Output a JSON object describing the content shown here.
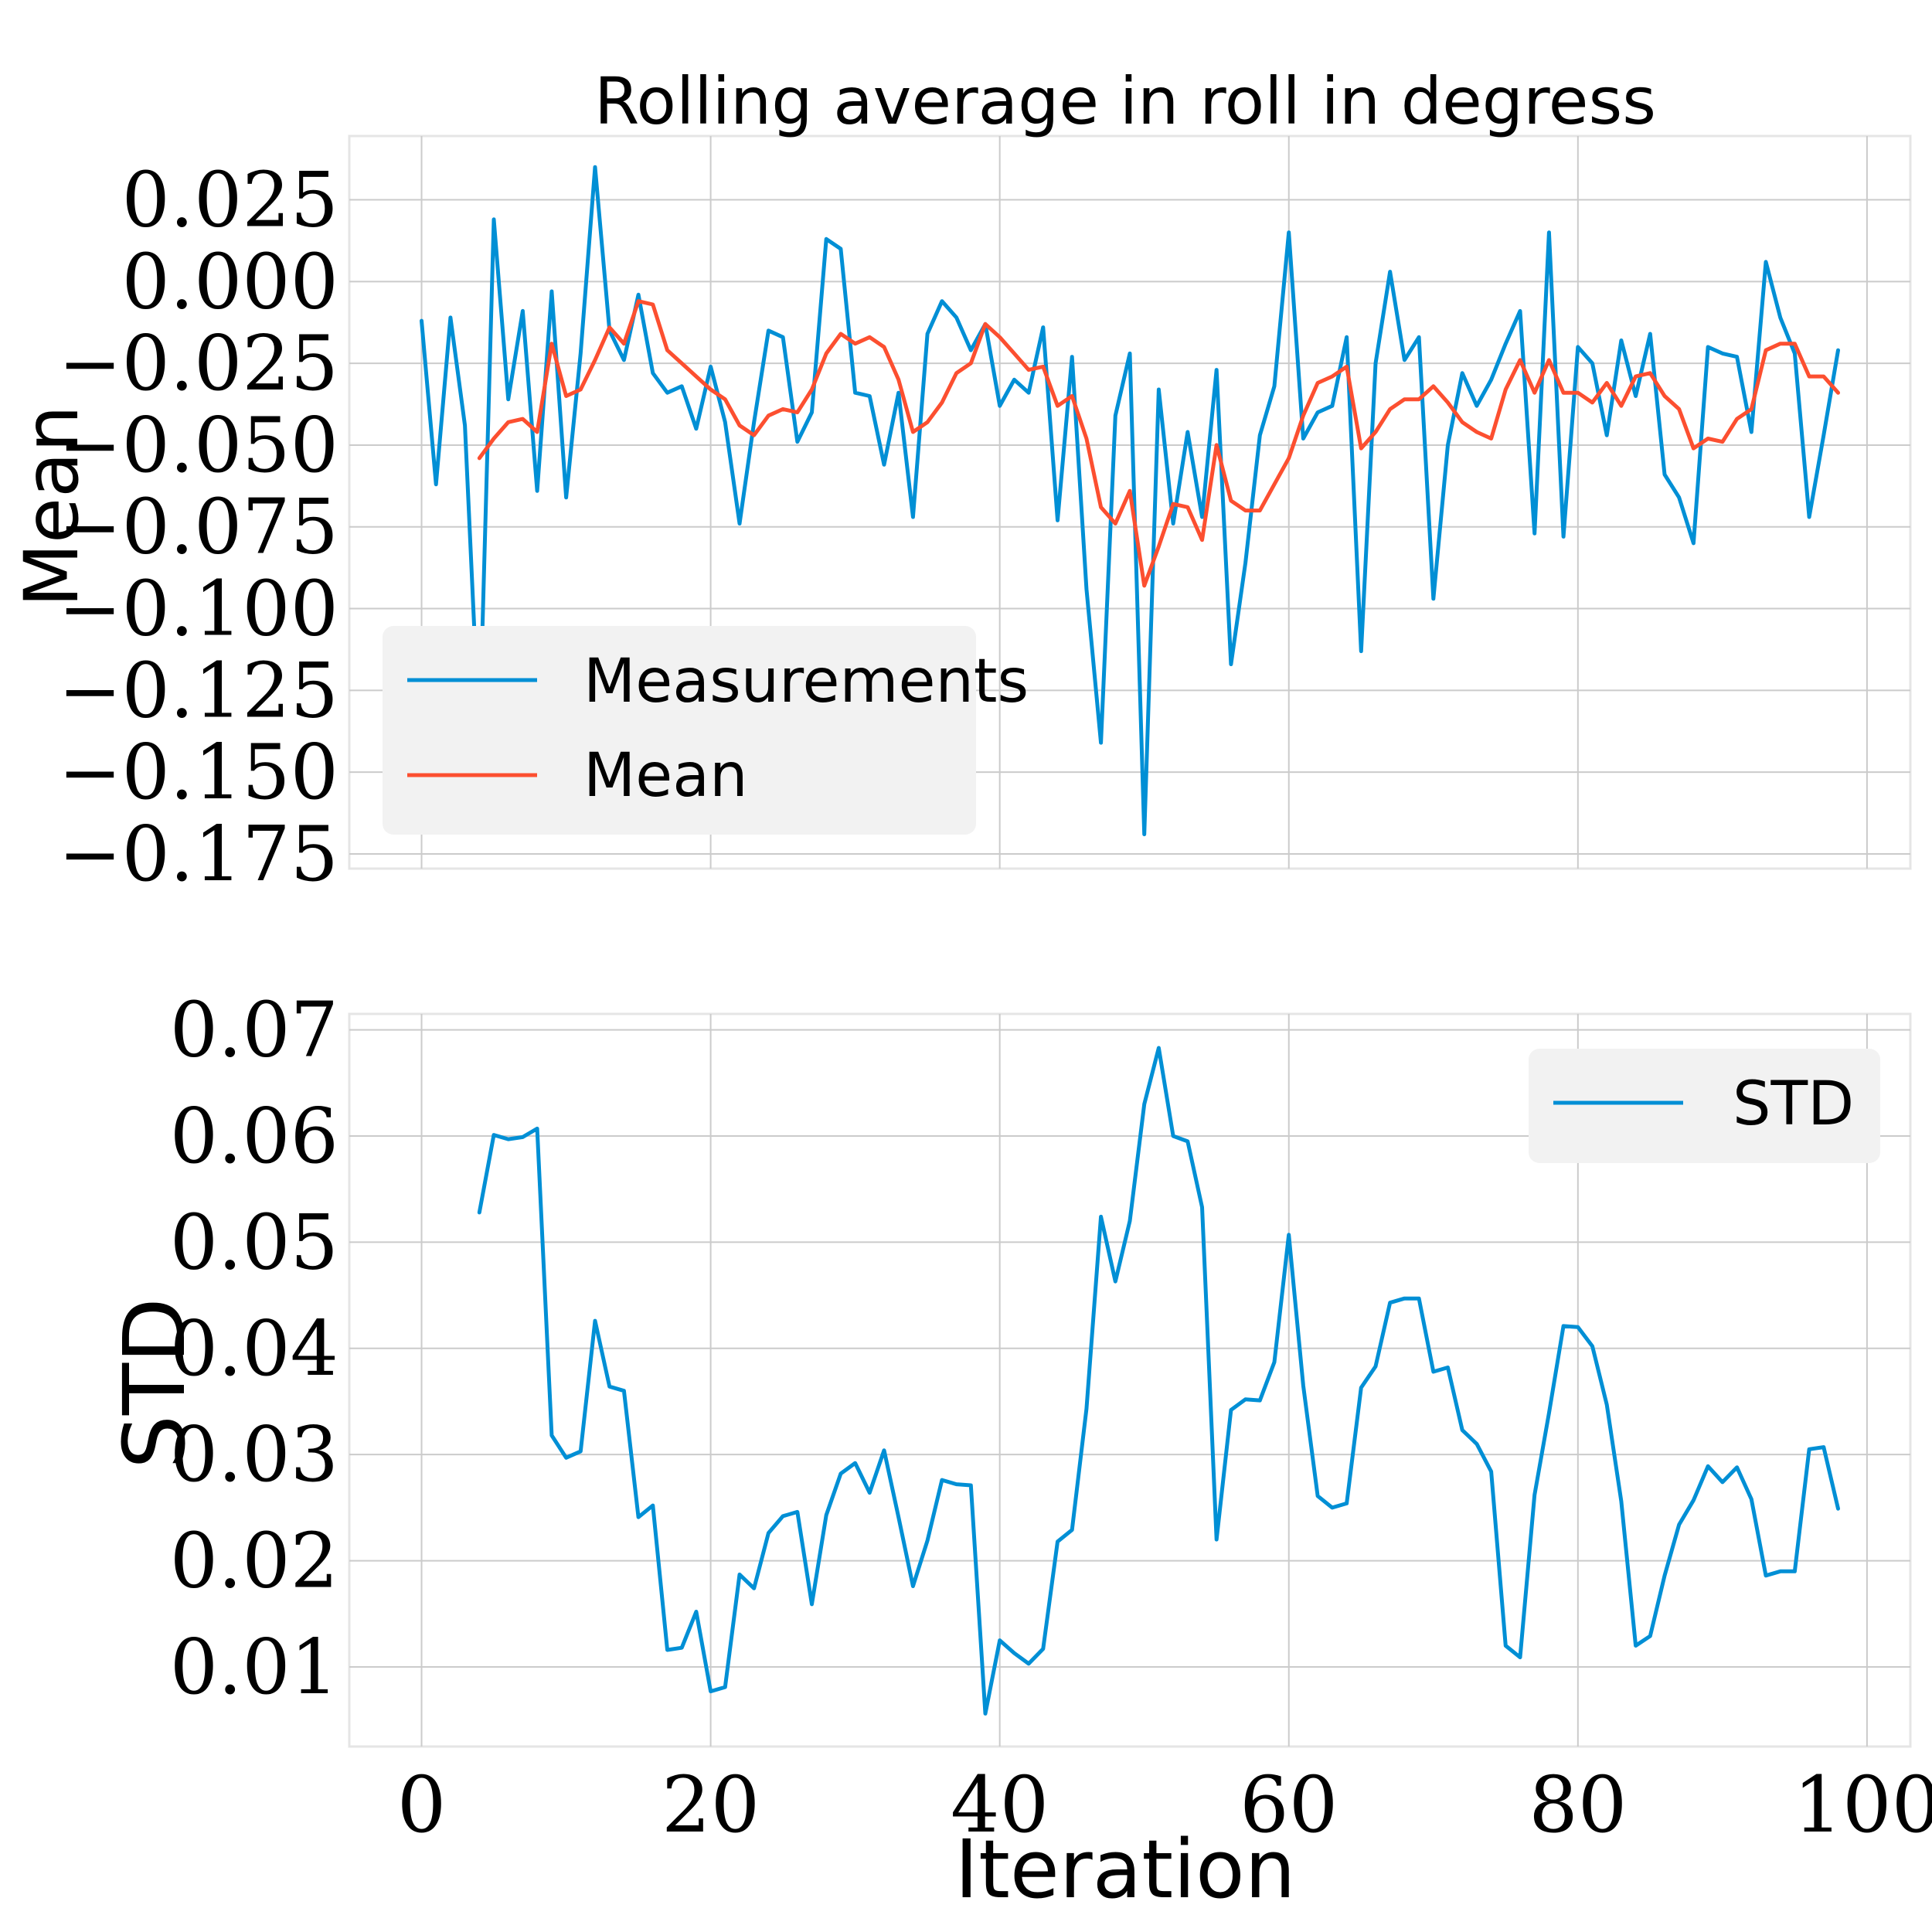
{
  "chart_data": [
    {
      "type": "line",
      "title": "Rolling average in roll in degress",
      "xlabel": "",
      "ylabel": "Mean",
      "xlim": [
        -5,
        103
      ],
      "ylim": [
        -0.1795,
        0.0445
      ],
      "x_ticks": [
        0,
        20,
        40,
        60,
        80,
        100
      ],
      "y_ticks": [
        0.025,
        0.0,
        -0.025,
        -0.05,
        -0.075,
        -0.1,
        -0.125,
        -0.15,
        -0.175
      ],
      "y_tick_labels": [
        "0.025",
        "0.000",
        "−0.025",
        "−0.050",
        "−0.075",
        "−0.100",
        "−0.125",
        "−0.150",
        "−0.175"
      ],
      "grid": true,
      "legend": "lower-left",
      "series": [
        {
          "name": "Measurements",
          "color": "#008fd5",
          "x_start": 0,
          "values": [
            -0.012,
            -0.062,
            -0.011,
            -0.044,
            -0.14,
            0.019,
            -0.036,
            -0.009,
            -0.064,
            -0.003,
            -0.066,
            -0.022,
            0.035,
            -0.015,
            -0.024,
            -0.004,
            -0.028,
            -0.034,
            -0.032,
            -0.045,
            -0.026,
            -0.043,
            -0.074,
            -0.043,
            -0.015,
            -0.017,
            -0.049,
            -0.04,
            0.013,
            0.01,
            -0.034,
            -0.035,
            -0.056,
            -0.034,
            -0.072,
            -0.016,
            -0.006,
            -0.011,
            -0.021,
            -0.013,
            -0.038,
            -0.03,
            -0.034,
            -0.014,
            -0.073,
            -0.023,
            -0.094,
            -0.141,
            -0.041,
            -0.022,
            -0.169,
            -0.033,
            -0.074,
            -0.046,
            -0.072,
            -0.027,
            -0.117,
            -0.086,
            -0.047,
            -0.032,
            0.015,
            -0.048,
            -0.04,
            -0.038,
            -0.017,
            -0.113,
            -0.025,
            0.003,
            -0.024,
            -0.017,
            -0.097,
            -0.05,
            -0.028,
            -0.038,
            -0.03,
            -0.019,
            -0.009,
            -0.077,
            0.015,
            -0.078,
            -0.02,
            -0.025,
            -0.047,
            -0.018,
            -0.035,
            -0.016,
            -0.059,
            -0.066,
            -0.08,
            -0.02,
            -0.022,
            -0.023,
            -0.046,
            0.006,
            -0.011,
            -0.022,
            -0.072,
            -0.047,
            -0.021
          ]
        },
        {
          "name": "Mean",
          "color": "#fc4f30",
          "x_start": 4,
          "values": [
            -0.054,
            -0.048,
            -0.043,
            -0.042,
            -0.046,
            -0.019,
            -0.035,
            -0.033,
            -0.024,
            -0.014,
            -0.019,
            -0.006,
            -0.007,
            -0.021,
            -0.025,
            -0.029,
            -0.033,
            -0.036,
            -0.044,
            -0.047,
            -0.041,
            -0.039,
            -0.04,
            -0.033,
            -0.022,
            -0.016,
            -0.019,
            -0.017,
            -0.02,
            -0.03,
            -0.046,
            -0.043,
            -0.037,
            -0.028,
            -0.025,
            -0.013,
            -0.017,
            -0.022,
            -0.027,
            -0.026,
            -0.038,
            -0.035,
            -0.048,
            -0.069,
            -0.074,
            -0.064,
            -0.093,
            -0.081,
            -0.068,
            -0.069,
            -0.079,
            -0.05,
            -0.067,
            -0.07,
            -0.07,
            -0.062,
            -0.054,
            -0.041,
            -0.031,
            -0.029,
            -0.026,
            -0.051,
            -0.046,
            -0.039,
            -0.036,
            -0.036,
            -0.032,
            -0.037,
            -0.043,
            -0.046,
            -0.048,
            -0.033,
            -0.024,
            -0.034,
            -0.024,
            -0.034,
            -0.034,
            -0.037,
            -0.031,
            -0.038,
            -0.029,
            -0.028,
            -0.035,
            -0.039,
            -0.051,
            -0.048,
            -0.049,
            -0.042,
            -0.039,
            -0.021,
            -0.019,
            -0.019,
            -0.029,
            -0.029,
            -0.034
          ]
        }
      ]
    },
    {
      "type": "line",
      "title": "",
      "xlabel": "Iteration",
      "ylabel": "STD",
      "xlim": [
        -5,
        103
      ],
      "ylim": [
        0.0025,
        0.0715
      ],
      "x_ticks": [
        0,
        20,
        40,
        60,
        80,
        100
      ],
      "y_ticks": [
        0.01,
        0.02,
        0.03,
        0.04,
        0.05,
        0.06,
        0.07
      ],
      "y_tick_labels": [
        "0.01",
        "0.02",
        "0.03",
        "0.04",
        "0.05",
        "0.06",
        "0.07"
      ],
      "grid": true,
      "legend": "upper-right",
      "series": [
        {
          "name": "STD",
          "color": "#008fd5",
          "x_start": 4,
          "values": [
            0.0528,
            0.0601,
            0.0597,
            0.0599,
            0.0607,
            0.0318,
            0.0297,
            0.0303,
            0.0426,
            0.0364,
            0.036,
            0.0241,
            0.0252,
            0.0116,
            0.0118,
            0.0152,
            0.0077,
            0.0081,
            0.0187,
            0.0174,
            0.0226,
            0.0242,
            0.0246,
            0.0159,
            0.0243,
            0.0282,
            0.0292,
            0.0264,
            0.0304,
            0.0241,
            0.0176,
            0.0219,
            0.0276,
            0.0272,
            0.0271,
            0.0056,
            0.0125,
            0.0113,
            0.0103,
            0.0117,
            0.0218,
            0.0229,
            0.0343,
            0.0524,
            0.0463,
            0.052,
            0.063,
            0.0683,
            0.06,
            0.0595,
            0.0533,
            0.022,
            0.0342,
            0.0352,
            0.0351,
            0.0387,
            0.0507,
            0.0365,
            0.0261,
            0.025,
            0.0254,
            0.0363,
            0.0383,
            0.0443,
            0.0447,
            0.0447,
            0.0378,
            0.0382,
            0.0323,
            0.031,
            0.0284,
            0.012,
            0.0109,
            0.0262,
            0.0339,
            0.0421,
            0.042,
            0.0402,
            0.0347,
            0.0256,
            0.012,
            0.0129,
            0.0186,
            0.0234,
            0.0257,
            0.0289,
            0.0274,
            0.0288,
            0.0258,
            0.0186,
            0.019,
            0.019,
            0.0305,
            0.0307,
            0.0249
          ]
        }
      ]
    }
  ]
}
